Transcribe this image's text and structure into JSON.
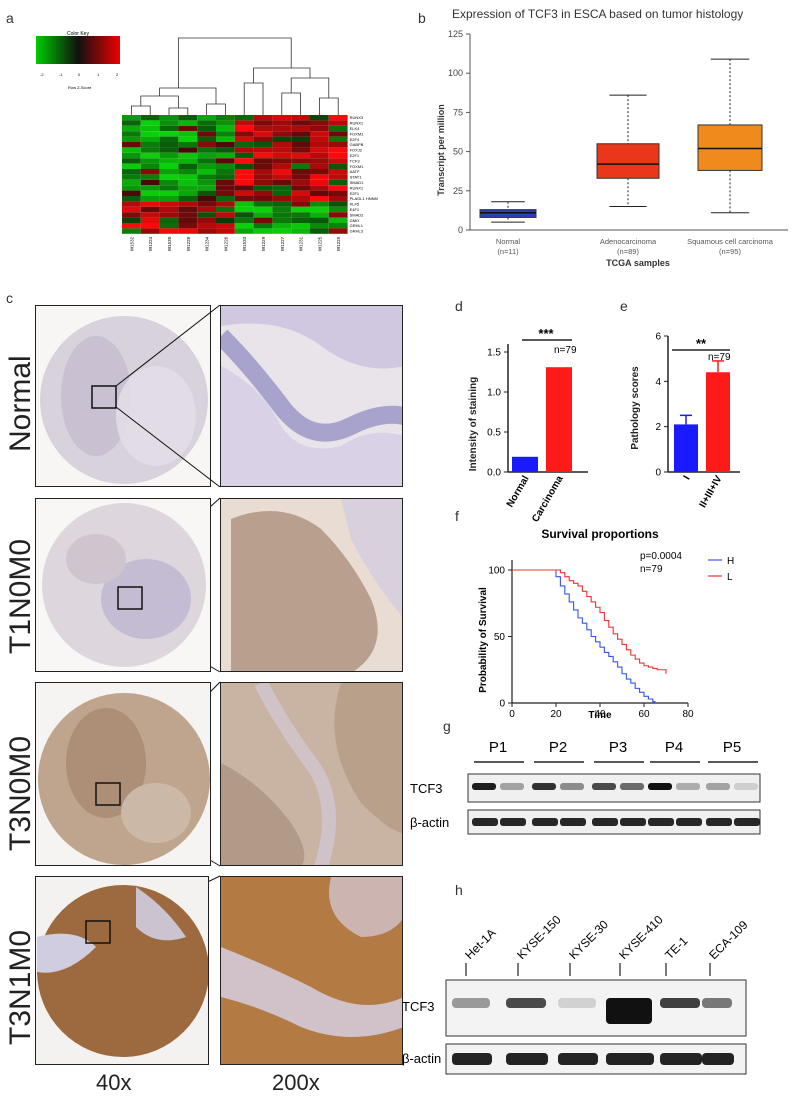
{
  "panels": {
    "a": {
      "letter": "a",
      "color_key_title": "Color Key",
      "color_key_ticks": [
        "-2",
        "-1",
        "0",
        "1",
        "2"
      ],
      "color_key_caption": "Row Z-Score",
      "genes": [
        "RUNX3",
        "RUNX1",
        "ELK4",
        "FOXM1",
        "E2F4",
        "GABPB",
        "FOXJ2",
        "E2F1",
        "TCF3",
        "FOXM1",
        "AATF",
        "STAT1",
        "SMAD1",
        "RUNX1",
        "E2F1",
        "PLAGL1 HNNM",
        "KLF5",
        "E4F1",
        "SMAD2",
        "GMO",
        "GRHL1",
        "GRHL3"
      ],
      "samples": [
        "W1532",
        "W1224",
        "W1530",
        "W1228",
        "W1234",
        "W1226",
        "W1533",
        "W1229",
        "W1227",
        "W1231",
        "W1225",
        "W1229"
      ]
    },
    "b": {
      "letter": "b",
      "title": "Expression of TCF3 in ESCA based on tumor histology",
      "ylabel": "Transcript per million",
      "xlabel": "TCGA samples",
      "yticks": [
        "0",
        "25",
        "50",
        "75",
        "100",
        "125"
      ],
      "groups": [
        {
          "name": "Normal",
          "n": "(n=11)",
          "color": "#2b3fb8",
          "min": 5,
          "q1": 8,
          "median": 11,
          "q3": 13,
          "max": 18
        },
        {
          "name": "Adenocarcinoma",
          "n": "(n=89)",
          "color": "#e8371a",
          "min": 15,
          "q1": 33,
          "median": 42,
          "q3": 55,
          "max": 86
        },
        {
          "name": "Squamous cell carcinoma",
          "n": "(n=95)",
          "color": "#f08a1c",
          "min": 11,
          "q1": 38,
          "median": 52,
          "q3": 67,
          "max": 109
        }
      ]
    },
    "c": {
      "letter": "c",
      "rows": [
        "Normal",
        "T1N0M0",
        "T3N0M0",
        "T3N1M0"
      ],
      "mag_left": "40x",
      "mag_right": "200x"
    },
    "d": {
      "letter": "d",
      "ylabel": "Intensity of staining",
      "sig": "***",
      "n_label": "n=79",
      "yticks": [
        "0.0",
        "0.5",
        "1.0",
        "1.5"
      ]
    },
    "e": {
      "letter": "e",
      "ylabel": "Pathology scores",
      "sig": "**",
      "n_label": "n=79",
      "yticks": [
        "0",
        "2",
        "4",
        "6"
      ]
    },
    "f": {
      "letter": "f",
      "title": "Survival proportions",
      "ylabel": "Probability of Survival",
      "xlabel": "Time",
      "p_label": "p=0.0004",
      "n_label": "n=79",
      "legend_h": "H",
      "legend_l": "L",
      "xticks": [
        "0",
        "20",
        "40",
        "60",
        "80"
      ],
      "yticks": [
        "0",
        "50",
        "100"
      ]
    },
    "g": {
      "letter": "g",
      "patients": [
        "P1",
        "P2",
        "P3",
        "P4",
        "P5"
      ],
      "tcf3": "TCF3",
      "actin": "β-actin"
    },
    "h": {
      "letter": "h",
      "cell_lines": [
        "Het-1A",
        "KYSE-150",
        "KYSE-30",
        "KYSE-410",
        "TE-1",
        "ECA-109"
      ],
      "tcf3": "TCF3",
      "actin": "β-actin"
    }
  },
  "chart_data": [
    {
      "type": "box",
      "title": "Expression of TCF3 in ESCA based on tumor histology",
      "xlabel": "TCGA samples",
      "ylabel": "Transcript per million",
      "ylim": [
        0,
        125
      ],
      "categories": [
        "Normal (n=11)",
        "Adenocarcinoma (n=89)",
        "Squamous cell carcinoma (n=95)"
      ],
      "series": [
        {
          "min": [
            5,
            15,
            11
          ],
          "q1": [
            8,
            33,
            38
          ],
          "median": [
            11,
            42,
            52
          ],
          "q3": [
            13,
            55,
            67
          ],
          "max": [
            18,
            86,
            109
          ]
        }
      ]
    },
    {
      "type": "bar",
      "ylabel": "Intensity of staining",
      "categories": [
        "Normal",
        "Carcinoma"
      ],
      "values": [
        0.19,
        1.31
      ],
      "colors": [
        "#1a1aff",
        "#ff1a1a"
      ],
      "ylim": [
        0,
        1.5
      ]
    },
    {
      "type": "bar",
      "ylabel": "Pathology scores",
      "categories": [
        "I",
        "II+III+IV"
      ],
      "values": [
        2.1,
        4.4
      ],
      "errors": [
        0.4,
        0.5
      ],
      "colors": [
        "#1a1aff",
        "#ff1a1a"
      ],
      "ylim": [
        0,
        6
      ]
    },
    {
      "type": "line",
      "title": "Survival proportions",
      "xlabel": "Time",
      "ylabel": "Probability of Survival",
      "xlim": [
        0,
        80
      ],
      "ylim": [
        0,
        100
      ],
      "series": [
        {
          "name": "H",
          "color": "#3355ee",
          "x": [
            0,
            18,
            20,
            22,
            24,
            26,
            28,
            30,
            32,
            34,
            36,
            38,
            40,
            42,
            44,
            46,
            48,
            50,
            52,
            54,
            56,
            58,
            60,
            62,
            64,
            65
          ],
          "y": [
            100,
            100,
            95,
            88,
            82,
            76,
            70,
            64,
            60,
            55,
            50,
            46,
            42,
            38,
            35,
            31,
            27,
            22,
            18,
            15,
            11,
            8,
            5,
            3,
            1,
            0
          ]
        },
        {
          "name": "L",
          "color": "#ee3333",
          "x": [
            0,
            20,
            22,
            24,
            26,
            28,
            30,
            32,
            34,
            36,
            38,
            40,
            42,
            44,
            46,
            48,
            50,
            52,
            54,
            56,
            58,
            60,
            62,
            64,
            66,
            68,
            70
          ],
          "y": [
            100,
            100,
            98,
            95,
            92,
            90,
            88,
            84,
            80,
            76,
            72,
            68,
            62,
            57,
            52,
            48,
            44,
            40,
            36,
            33,
            30,
            28,
            27,
            26,
            25,
            25,
            22
          ]
        }
      ]
    }
  ]
}
